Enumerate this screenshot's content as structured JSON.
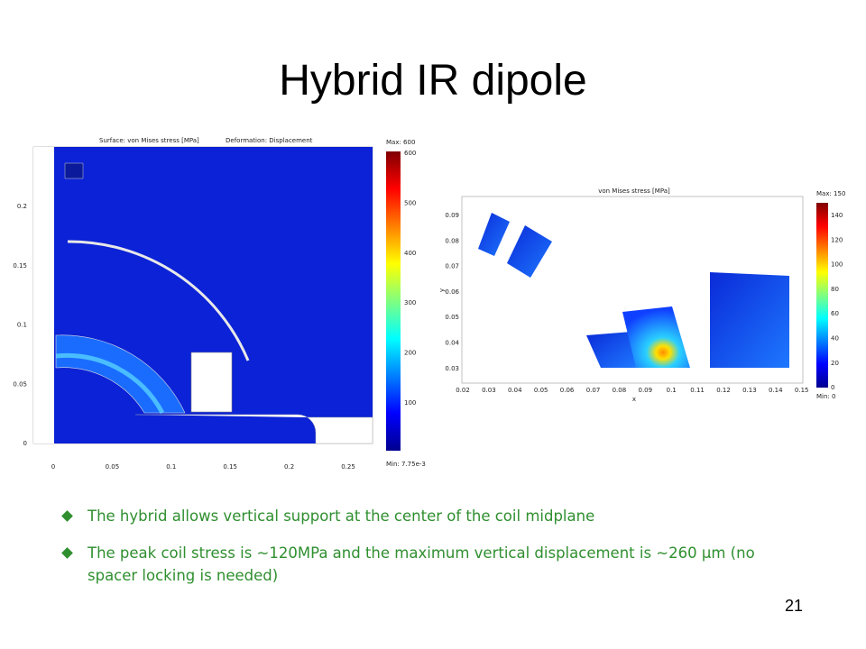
{
  "title": "Hybrid IR dipole",
  "left_plot": {
    "surface_label": "Surface: von Mises stress [MPa]",
    "deformation_label": "Deformation: Displacement",
    "max_label": "Max: 600",
    "min_label": "Min: 7.75e-3",
    "colorbar_ticks": [
      "600",
      "500",
      "400",
      "300",
      "200",
      "100"
    ],
    "x_ticks": [
      "0",
      "0.05",
      "0.1",
      "0.15",
      "0.2",
      "0.25"
    ],
    "y_ticks": [
      "0.2",
      "0.15",
      "0.1",
      "0.05",
      "0"
    ]
  },
  "right_plot": {
    "title": "von Mises stress [MPa]",
    "max_label": "Max: 150",
    "min_label": "Min: 0",
    "colorbar_ticks": [
      "140",
      "120",
      "100",
      "80",
      "60",
      "40",
      "20",
      "0"
    ],
    "x_ticks": [
      "0.02",
      "0.03",
      "0.04",
      "0.05",
      "0.06",
      "0.07",
      "0.08",
      "0.09",
      "0.1",
      "0.11",
      "0.12",
      "0.13",
      "0.14",
      "0.15"
    ],
    "y_ticks": [
      "0.09",
      "0.08",
      "0.07",
      "0.06",
      "0.05",
      "0.04",
      "0.03"
    ],
    "x_label": "x",
    "y_label": "y"
  },
  "bullets": [
    "The hybrid allows vertical support at the center of the coil midplane",
    "The peak coil stress is ~120MPa and the maximum vertical displacement is ~260 μm (no spacer locking is needed)"
  ],
  "page_number": "21"
}
